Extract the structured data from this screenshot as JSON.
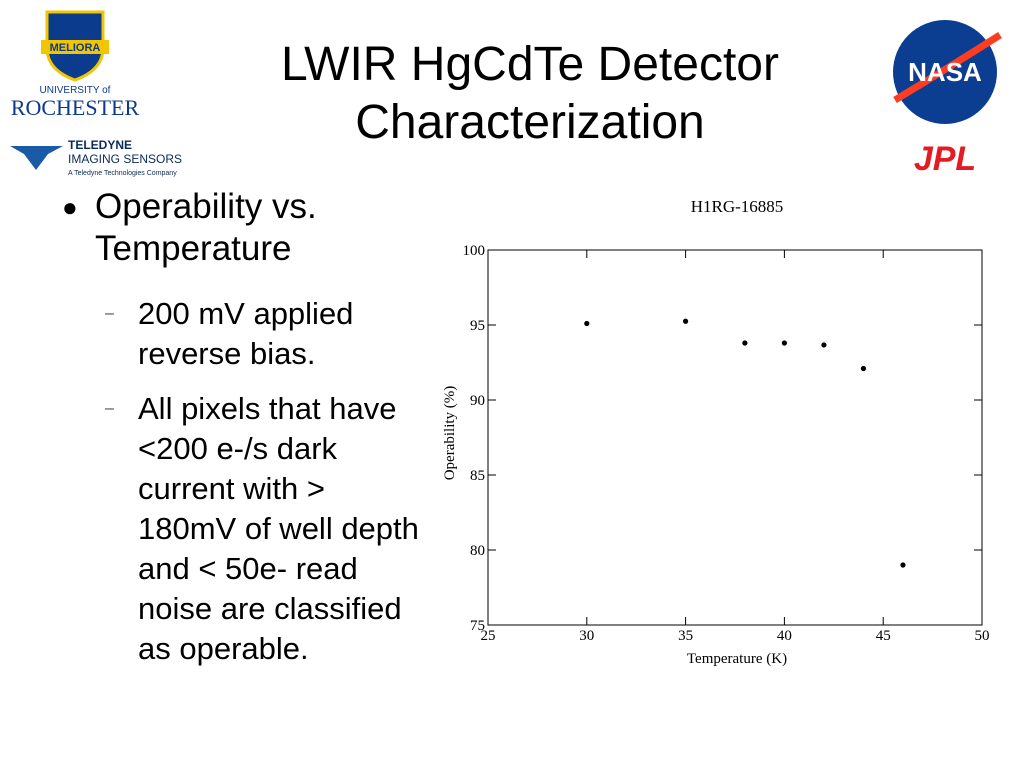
{
  "title": "LWIR HgCdTe Detector Characterization",
  "logos": {
    "rochester_motto": "MELIORA",
    "rochester_top": "UNIVERSITY of",
    "rochester_name": "ROCHESTER",
    "teledyne_name": "TELEDYNE",
    "teledyne_division": "IMAGING SENSORS",
    "teledyne_tagline": "A Teledyne Technologies Company",
    "nasa": "NASA",
    "jpl": "JPL"
  },
  "bullets": [
    {
      "text": "Operability vs. Temperature",
      "subs": [
        "200 mV applied reverse bias.",
        "All pixels that have <200 e-/s dark current with > 180mV of well depth and < 50e- read noise are classified as operable."
      ]
    }
  ],
  "chart_data": {
    "type": "scatter",
    "title": "H1RG-16885",
    "x_label": "Temperature (K)",
    "y_label": "Operability (%)",
    "x": [
      30,
      35,
      38,
      40,
      42,
      44,
      46
    ],
    "values": [
      95.1,
      95.25,
      93.8,
      93.8,
      93.67,
      92.1,
      79.0
    ],
    "color": "#000000",
    "xlim": [
      25,
      50
    ],
    "ylim": [
      75,
      100
    ],
    "xticks": [
      25,
      30,
      35,
      40,
      45,
      50
    ],
    "yticks": [
      75,
      80,
      85,
      90,
      95,
      100
    ]
  }
}
